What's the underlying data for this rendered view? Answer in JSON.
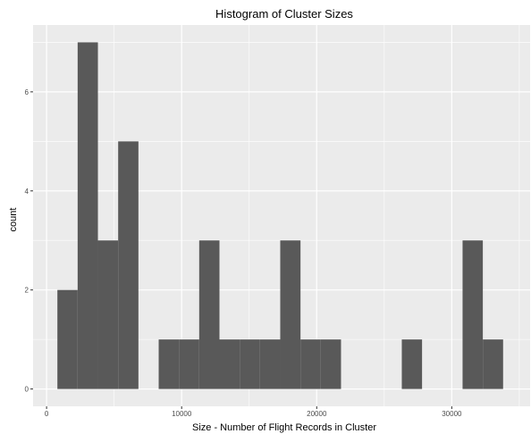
{
  "chart_data": {
    "type": "bar",
    "subtype": "histogram",
    "title": "Histogram of Cluster Sizes",
    "xlabel": "Size - Number of Flight Records in Cluster",
    "ylabel": "count",
    "xlim": [
      -1000,
      35800
    ],
    "ylim": [
      -0.35,
      7.35
    ],
    "x_ticks": [
      0,
      10000,
      20000,
      30000
    ],
    "x_tick_labels": [
      "0",
      "10000",
      "20000",
      "30000"
    ],
    "y_ticks": [
      0,
      2,
      4,
      6
    ],
    "y_tick_labels": [
      "0",
      "2",
      "4",
      "6"
    ],
    "grid": true,
    "bins": [
      {
        "x0": 800,
        "x1": 2300,
        "count": 2
      },
      {
        "x0": 2300,
        "x1": 3800,
        "count": 7
      },
      {
        "x0": 3800,
        "x1": 5300,
        "count": 3
      },
      {
        "x0": 5300,
        "x1": 6800,
        "count": 5
      },
      {
        "x0": 6800,
        "x1": 8300,
        "count": 0
      },
      {
        "x0": 8300,
        "x1": 9800,
        "count": 1
      },
      {
        "x0": 9800,
        "x1": 11300,
        "count": 1
      },
      {
        "x0": 11300,
        "x1": 12800,
        "count": 3
      },
      {
        "x0": 12800,
        "x1": 14300,
        "count": 1
      },
      {
        "x0": 14300,
        "x1": 15800,
        "count": 1
      },
      {
        "x0": 15800,
        "x1": 17300,
        "count": 1
      },
      {
        "x0": 17300,
        "x1": 18800,
        "count": 3
      },
      {
        "x0": 18800,
        "x1": 20300,
        "count": 1
      },
      {
        "x0": 20300,
        "x1": 21800,
        "count": 1
      },
      {
        "x0": 21800,
        "x1": 23300,
        "count": 0
      },
      {
        "x0": 23300,
        "x1": 24800,
        "count": 0
      },
      {
        "x0": 24800,
        "x1": 26300,
        "count": 0
      },
      {
        "x0": 26300,
        "x1": 27800,
        "count": 1
      },
      {
        "x0": 27800,
        "x1": 29300,
        "count": 0
      },
      {
        "x0": 29300,
        "x1": 30800,
        "count": 0
      },
      {
        "x0": 30800,
        "x1": 32300,
        "count": 3
      },
      {
        "x0": 32300,
        "x1": 33800,
        "count": 1
      }
    ],
    "colors": {
      "panel_background": "#ebebeb",
      "grid_major": "#ffffff",
      "bar_fill": "#595959",
      "tick_color": "#333333"
    }
  }
}
